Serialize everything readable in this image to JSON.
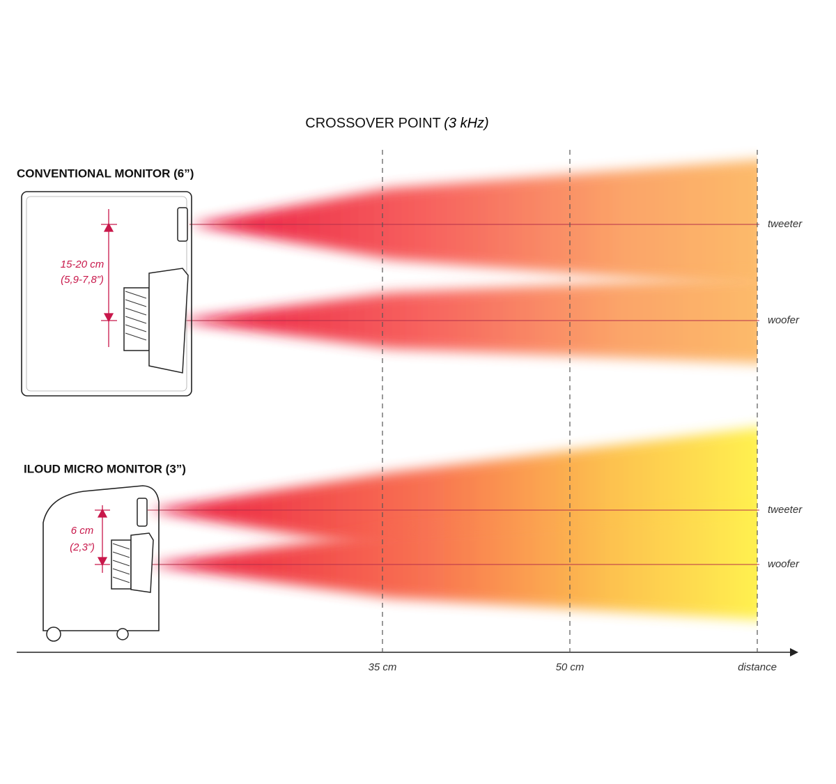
{
  "title": {
    "main": "CROSSOVER POINT",
    "sub": "(3 kHz)"
  },
  "panels": [
    {
      "label": "CONVENTIONAL MONITOR (6”)",
      "spacing": "15-20 cm",
      "spacing_imperial": "(5,9-7,8”)",
      "drivers": [
        "tweeter",
        "woofer"
      ]
    },
    {
      "label": "ILOUD MICRO MONITOR (3”)",
      "spacing": "6 cm",
      "spacing_imperial": "(2,3”)",
      "drivers": [
        "tweeter",
        "woofer"
      ]
    }
  ],
  "axis": {
    "ticks": [
      "35 cm",
      "50 cm"
    ],
    "label": "distance"
  }
}
